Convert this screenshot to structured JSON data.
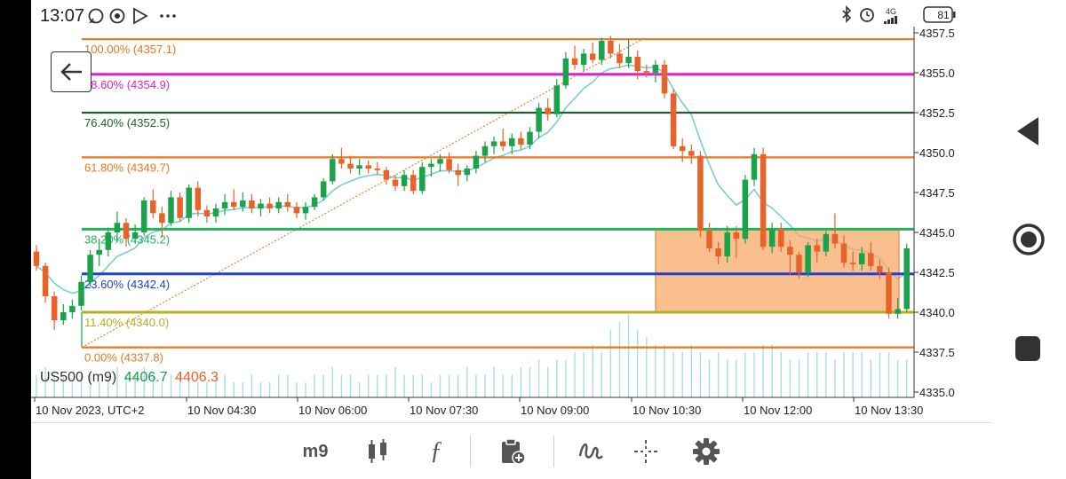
{
  "status_bar": {
    "time": "13:07",
    "network": "4G",
    "battery": "81"
  },
  "symbol": {
    "name": "US500 (m9)",
    "bid": "4406.7",
    "ask": "4406.3",
    "bid_color": "#1a9a4c",
    "ask_color": "#e8632a"
  },
  "toolbar": {
    "timeframe": "m9"
  },
  "colors": {
    "bull": "#1aa34a",
    "bear": "#e8632a",
    "ema": "#79cfd0",
    "volume": "#a8dedf"
  },
  "price_axis": {
    "ticks": [
      "4357.5",
      "4355.0",
      "4352.5",
      "4350.0",
      "4347.5",
      "4345.0",
      "4342.5",
      "4340.0",
      "4337.5",
      "4335.0"
    ]
  },
  "time_axis": {
    "ticks": [
      "10 Nov 2023, UTC+2",
      "10 Nov 04:30",
      "10 Nov 06:00",
      "10 Nov 07:30",
      "10 Nov 09:00",
      "10 Nov 10:30",
      "10 Nov 12:00",
      "10 Nov 13:30"
    ]
  },
  "fibonacci": [
    {
      "label": "100.00% (4357.1)",
      "price": 4357.1,
      "color": "#e87722"
    },
    {
      "label": "88.60% (4354.9)",
      "price": 4354.9,
      "color": "#e020d0"
    },
    {
      "label": "76.40% (4352.5)",
      "price": 4352.5,
      "color": "#1e5e30"
    },
    {
      "label": "61.80% (4349.7)",
      "price": 4349.7,
      "color": "#e87722"
    },
    {
      "label": "38.20% (4345.2)",
      "price": 4345.2,
      "color": "#22b45a"
    },
    {
      "label": "23.60% (4342.4)",
      "price": 4342.4,
      "color": "#1f3fd8"
    },
    {
      "label": "11.40% (4340.0)",
      "price": 4340.0,
      "color": "#b5b020"
    },
    {
      "label": "0.00% (4337.8)",
      "price": 4337.8,
      "color": "#e87722"
    }
  ],
  "chart_data": {
    "type": "candlestick",
    "price_range": [
      4334.5,
      4358.0
    ],
    "highlight_zone": {
      "price_top": 4345.2,
      "price_bottom": 4340.0,
      "color": "#f7a96a"
    },
    "candles": [
      [
        4343.8,
        4344.2,
        4342.6,
        4342.9
      ],
      [
        4342.9,
        4343.1,
        4340.6,
        4341.0
      ],
      [
        4341.0,
        4341.3,
        4338.9,
        4339.5
      ],
      [
        4339.5,
        4340.5,
        4339.2,
        4340.0
      ],
      [
        4340.0,
        4340.8,
        4339.6,
        4340.4
      ],
      [
        4340.4,
        4342.3,
        4340.1,
        4341.9
      ],
      [
        4341.9,
        4343.9,
        4341.6,
        4343.6
      ],
      [
        4343.6,
        4344.6,
        4342.9,
        4343.9
      ],
      [
        4343.9,
        4345.3,
        4343.5,
        4345.0
      ],
      [
        4345.0,
        4346.3,
        4344.4,
        4345.6
      ],
      [
        4345.6,
        4345.9,
        4344.1,
        4344.6
      ],
      [
        4344.6,
        4345.5,
        4344.3,
        4345.0
      ],
      [
        4345.0,
        4347.2,
        4344.8,
        4347.0
      ],
      [
        4347.0,
        4347.7,
        4345.9,
        4346.2
      ],
      [
        4346.2,
        4346.6,
        4344.7,
        4345.6
      ],
      [
        4345.6,
        4347.6,
        4345.4,
        4347.2
      ],
      [
        4347.2,
        4347.5,
        4345.7,
        4345.9
      ],
      [
        4345.9,
        4348.0,
        4345.6,
        4347.8
      ],
      [
        4347.8,
        4348.2,
        4346.0,
        4346.4
      ],
      [
        4346.4,
        4346.7,
        4345.6,
        4346.0
      ],
      [
        4346.0,
        4346.8,
        4345.6,
        4346.5
      ],
      [
        4346.5,
        4347.4,
        4346.1,
        4346.9
      ],
      [
        4346.9,
        4347.7,
        4346.4,
        4346.6
      ],
      [
        4346.6,
        4347.5,
        4346.3,
        4347.0
      ],
      [
        4347.0,
        4347.4,
        4346.2,
        4346.5
      ],
      [
        4346.5,
        4347.1,
        4346.0,
        4346.8
      ],
      [
        4346.8,
        4347.2,
        4346.2,
        4346.5
      ],
      [
        4346.5,
        4347.2,
        4346.2,
        4346.9
      ],
      [
        4346.9,
        4347.4,
        4346.3,
        4346.6
      ],
      [
        4346.6,
        4346.9,
        4345.9,
        4346.2
      ],
      [
        4346.2,
        4346.9,
        4345.8,
        4346.6
      ],
      [
        4346.6,
        4347.4,
        4346.4,
        4347.2
      ],
      [
        4347.2,
        4348.4,
        4347.0,
        4348.2
      ],
      [
        4348.2,
        4349.9,
        4348.0,
        4349.6
      ],
      [
        4349.6,
        4350.3,
        4349.0,
        4349.3
      ],
      [
        4349.3,
        4349.8,
        4348.7,
        4349.0
      ],
      [
        4349.0,
        4349.6,
        4348.6,
        4349.2
      ],
      [
        4349.2,
        4349.5,
        4348.7,
        4349.0
      ],
      [
        4349.0,
        4349.4,
        4348.6,
        4348.9
      ],
      [
        4348.9,
        4349.1,
        4348.0,
        4348.3
      ],
      [
        4348.3,
        4348.6,
        4347.6,
        4347.9
      ],
      [
        4347.9,
        4348.9,
        4347.6,
        4348.6
      ],
      [
        4348.6,
        4348.9,
        4347.4,
        4347.6
      ],
      [
        4347.6,
        4349.4,
        4347.4,
        4349.1
      ],
      [
        4349.1,
        4349.6,
        4348.5,
        4349.3
      ],
      [
        4349.3,
        4349.9,
        4348.8,
        4349.6
      ],
      [
        4349.6,
        4350.0,
        4348.7,
        4348.9
      ],
      [
        4348.9,
        4349.3,
        4347.9,
        4348.6
      ],
      [
        4348.6,
        4349.2,
        4348.2,
        4349.0
      ],
      [
        4349.0,
        4350.1,
        4348.7,
        4349.8
      ],
      [
        4349.8,
        4350.7,
        4349.4,
        4350.4
      ],
      [
        4350.4,
        4351.0,
        4349.9,
        4350.7
      ],
      [
        4350.7,
        4351.5,
        4350.1,
        4350.4
      ],
      [
        4350.4,
        4351.2,
        4349.9,
        4350.9
      ],
      [
        4350.9,
        4351.3,
        4350.2,
        4350.5
      ],
      [
        4350.5,
        4351.6,
        4350.2,
        4351.3
      ],
      [
        4351.3,
        4353.1,
        4350.9,
        4352.8
      ],
      [
        4352.8,
        4353.4,
        4352.0,
        4352.4
      ],
      [
        4352.4,
        4354.6,
        4352.2,
        4354.2
      ],
      [
        4354.2,
        4356.3,
        4354.0,
        4355.9
      ],
      [
        4355.9,
        4356.7,
        4355.2,
        4355.5
      ],
      [
        4355.5,
        4356.5,
        4355.1,
        4356.2
      ],
      [
        4356.2,
        4356.9,
        4355.6,
        4355.8
      ],
      [
        4355.8,
        4357.2,
        4355.5,
        4357.0
      ],
      [
        4357.0,
        4357.3,
        4355.9,
        4356.2
      ],
      [
        4356.2,
        4356.8,
        4355.3,
        4355.6
      ],
      [
        4355.6,
        4357.1,
        4355.3,
        4356.0
      ],
      [
        4356.0,
        4356.4,
        4354.6,
        4355.1
      ],
      [
        4355.1,
        4355.5,
        4354.7,
        4355.0
      ],
      [
        4355.0,
        4355.8,
        4354.4,
        4355.5
      ],
      [
        4355.5,
        4355.8,
        4353.4,
        4353.7
      ],
      [
        4353.7,
        4354.0,
        4350.2,
        4350.4
      ],
      [
        4350.4,
        4350.9,
        4349.4,
        4350.1
      ],
      [
        4350.1,
        4350.5,
        4349.3,
        4349.8
      ],
      [
        4349.8,
        4350.1,
        4344.7,
        4345.1
      ],
      [
        4345.1,
        4345.6,
        4343.8,
        4344.0
      ],
      [
        4344.0,
        4344.4,
        4343.0,
        4343.5
      ],
      [
        4343.5,
        4345.4,
        4343.1,
        4345.0
      ],
      [
        4345.0,
        4345.4,
        4343.4,
        4344.6
      ],
      [
        4344.6,
        4348.6,
        4344.3,
        4348.3
      ],
      [
        4348.3,
        4350.3,
        4347.9,
        4349.9
      ],
      [
        4349.9,
        4350.3,
        4343.9,
        4344.1
      ],
      [
        4344.1,
        4345.6,
        4343.7,
        4345.2
      ],
      [
        4345.2,
        4345.6,
        4343.8,
        4344.1
      ],
      [
        4344.1,
        4344.5,
        4342.3,
        4343.6
      ],
      [
        4343.6,
        4343.8,
        4342.1,
        4342.5
      ],
      [
        4342.5,
        4344.4,
        4342.2,
        4344.2
      ],
      [
        4344.2,
        4344.6,
        4343.1,
        4343.8
      ],
      [
        4343.8,
        4345.1,
        4343.5,
        4344.9
      ],
      [
        4344.9,
        4346.2,
        4344.0,
        4344.3
      ],
      [
        4344.3,
        4344.8,
        4342.8,
        4343.1
      ],
      [
        4343.1,
        4343.8,
        4342.6,
        4343.0
      ],
      [
        4343.0,
        4344.1,
        4342.6,
        4343.7
      ],
      [
        4343.7,
        4344.4,
        4342.6,
        4342.9
      ],
      [
        4342.9,
        4343.3,
        4342.1,
        4342.5
      ],
      [
        4342.5,
        4342.8,
        4339.6,
        4339.9
      ],
      [
        4339.9,
        4340.9,
        4339.6,
        4340.2
      ],
      [
        4340.2,
        4344.3,
        4340.0,
        4344.0
      ]
    ],
    "volume": [
      3,
      4,
      3,
      3,
      2,
      3,
      3,
      2,
      3,
      4,
      3,
      3,
      4,
      3,
      2,
      3,
      3,
      3,
      2,
      2,
      3,
      3,
      2,
      2,
      3,
      2,
      2,
      3,
      3,
      2,
      2,
      3,
      3,
      4,
      3,
      3,
      2,
      3,
      3,
      3,
      4,
      3,
      3,
      3,
      2,
      3,
      3,
      3,
      4,
      3,
      3,
      4,
      3,
      3,
      4,
      4,
      5,
      4,
      5,
      5,
      6,
      6,
      7,
      6,
      9,
      10,
      11,
      9,
      8,
      7,
      7,
      6,
      6,
      7,
      6,
      5,
      6,
      5,
      5,
      6,
      6,
      7,
      7,
      6,
      5,
      5,
      6,
      6,
      6,
      5,
      6,
      6,
      6,
      5,
      6,
      6,
      5,
      5
    ]
  }
}
